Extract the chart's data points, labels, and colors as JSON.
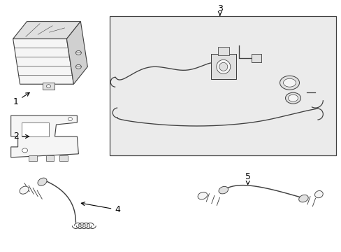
{
  "background_color": "#ffffff",
  "line_color": "#404040",
  "box_bg": "#ebebeb",
  "part_bg": "#f5f5f5",
  "part_dark": "#d0d0d0",
  "part_mid": "#e0e0e0"
}
